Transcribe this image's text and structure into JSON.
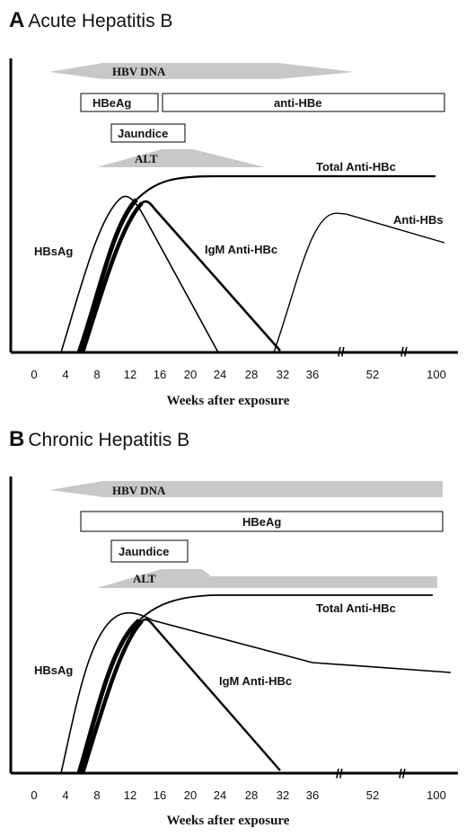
{
  "panels": {
    "a": {
      "letter": "A",
      "title": "Acute Hepatitis B",
      "bars": {
        "hbv_dna": "HBV DNA",
        "hbeag": "HBeAg",
        "anti_hbe": "anti-HBe",
        "jaundice": "Jaundice",
        "alt": "ALT"
      },
      "curves": {
        "total_anti_hbc": "Total Anti-HBc",
        "hbsag": "HBsAg",
        "igm_anti_hbc": "IgM Anti-HBc",
        "anti_hbs": "Anti-HBs"
      },
      "x_ticks": [
        "0",
        "4",
        "8",
        "12",
        "16",
        "20",
        "24",
        "28",
        "32",
        "36",
        "52",
        "100"
      ],
      "axis_break": "//",
      "x_label": "Weeks after exposure"
    },
    "b": {
      "letter": "B",
      "title": "Chronic Hepatitis B",
      "bars": {
        "hbv_dna": "HBV DNA",
        "hbeag": "HBeAg",
        "jaundice": "Jaundice",
        "alt": "ALT"
      },
      "curves": {
        "total_anti_hbc": "Total Anti-HBc",
        "hbsag": "HBsAg",
        "igm_anti_hbc": "IgM Anti-HBc"
      },
      "x_ticks": [
        "0",
        "4",
        "8",
        "12",
        "16",
        "20",
        "24",
        "28",
        "32",
        "36",
        "52",
        "100"
      ],
      "axis_break": "//",
      "x_label": "Weeks after exposure"
    }
  },
  "colors": {
    "bar_fill": "#c8c8c8",
    "line": "#000000",
    "box_border": "#000000"
  }
}
